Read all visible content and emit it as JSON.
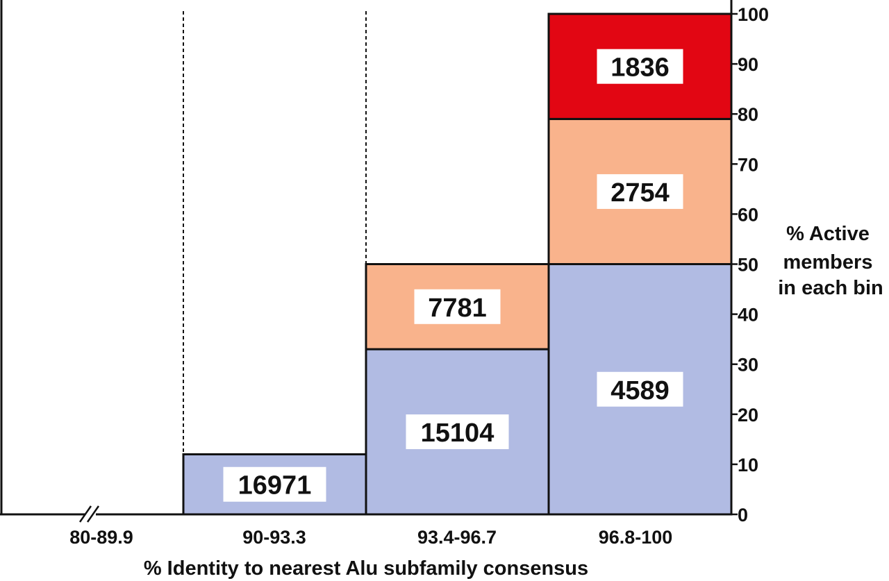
{
  "chart_data": {
    "type": "bar",
    "subtype": "stacked",
    "categories": [
      "80-89.9",
      "90-93.3",
      "93.4-96.7",
      "96.8-100"
    ],
    "segments": [
      {
        "category": "90-93.3",
        "start": 0,
        "end": 12,
        "count": "16971",
        "color": "#b1bbe3"
      },
      {
        "category": "93.4-96.7",
        "start": 0,
        "end": 33,
        "count": "15104",
        "color": "#b1bbe3"
      },
      {
        "category": "93.4-96.7",
        "start": 33,
        "end": 50,
        "count": "7781",
        "color": "#f9b38c"
      },
      {
        "category": "96.8-100",
        "start": 0,
        "end": 50,
        "count": "4589",
        "color": "#b1bbe3"
      },
      {
        "category": "96.8-100",
        "start": 50,
        "end": 79,
        "count": "2754",
        "color": "#f9b38c"
      },
      {
        "category": "96.8-100",
        "start": 79,
        "end": 100,
        "count": "1836",
        "color": "#e20613"
      }
    ],
    "xlabel": "% Identity to nearest Alu subfamily consensus",
    "ylabel": [
      "% Active",
      "members",
      "in each bin"
    ],
    "yaxis_side": "right",
    "ylim": [
      0,
      100
    ],
    "yticks": [
      "0",
      "10",
      "20",
      "30",
      "40",
      "50",
      "60",
      "70",
      "80",
      "90",
      "100"
    ],
    "axis_break": "//",
    "grid": false,
    "legend": "none"
  }
}
